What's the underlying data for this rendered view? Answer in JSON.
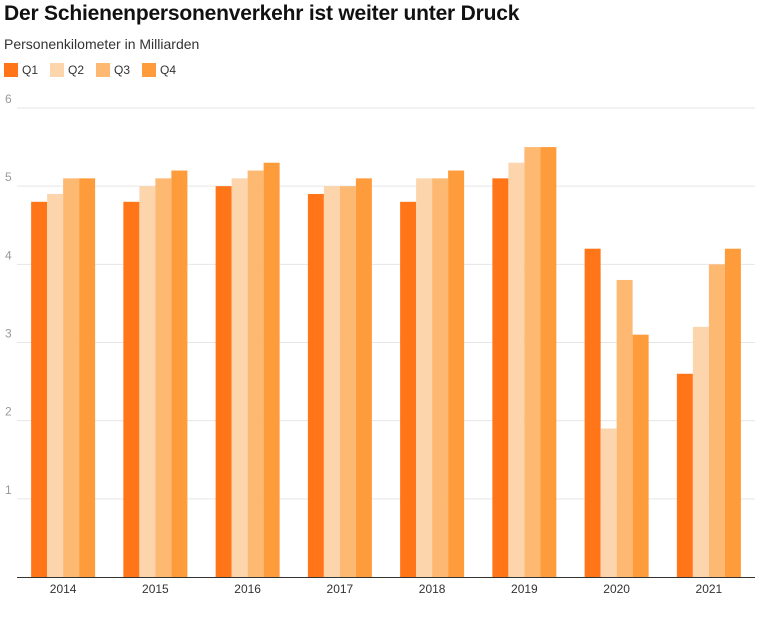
{
  "chart_data": {
    "type": "bar",
    "title": "Der Schienenpersonenverkehr ist weiter unter Druck",
    "subtitle": "Personenkilometer in Milliarden",
    "xlabel": "",
    "ylabel": "",
    "ylim": [
      0,
      6
    ],
    "yticks": [
      "1",
      "2",
      "3",
      "4",
      "5",
      "6"
    ],
    "grid": true,
    "legend_position": "top-left",
    "categories": [
      "2014",
      "2015",
      "2016",
      "2017",
      "2018",
      "2019",
      "2020",
      "2021"
    ],
    "series": [
      {
        "name": "Q1",
        "color": "#FF7518",
        "values": [
          4.8,
          4.8,
          5.0,
          4.9,
          4.8,
          5.1,
          4.2,
          2.6
        ]
      },
      {
        "name": "Q2",
        "color": "#FDD5AD",
        "values": [
          4.9,
          5.0,
          5.1,
          5.0,
          5.1,
          5.3,
          1.9,
          3.2
        ]
      },
      {
        "name": "Q3",
        "color": "#FDB872",
        "values": [
          5.1,
          5.1,
          5.2,
          5.0,
          5.1,
          5.5,
          3.8,
          4.0
        ]
      },
      {
        "name": "Q4",
        "color": "#FE9B3A",
        "values": [
          5.1,
          5.2,
          5.3,
          5.1,
          5.2,
          5.5,
          3.1,
          4.2
        ]
      }
    ]
  }
}
